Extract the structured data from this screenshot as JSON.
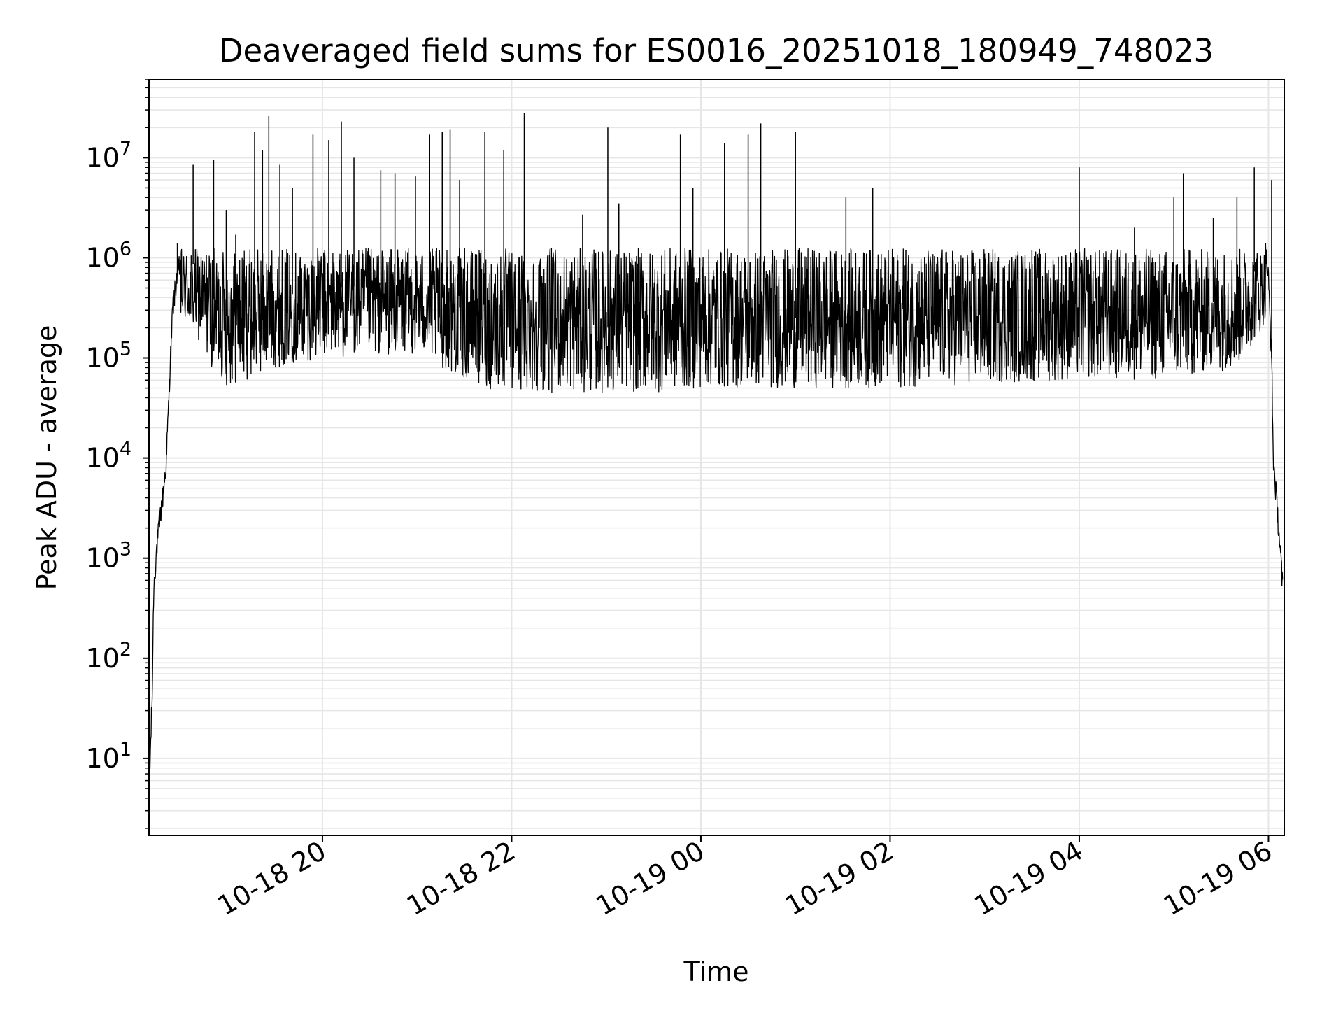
{
  "chart_data": {
    "type": "line",
    "title": "Deaveraged field sums for ES0016_20251018_180949_748023",
    "xlabel": "Time",
    "ylabel": "Peak ADU - average",
    "xaxis": {
      "scale": "time",
      "range": [
        "2025-10-18T18:10:00",
        "2025-10-19T06:10:00"
      ],
      "ticks": [
        "2025-10-18T20:00",
        "2025-10-18T22:00",
        "2025-10-19T00:00",
        "2025-10-19T02:00",
        "2025-10-19T04:00",
        "2025-10-19T06:00"
      ],
      "tick_labels": [
        "10-18 20",
        "10-18 22",
        "10-19 00",
        "10-19 02",
        "10-19 04",
        "10-19 06"
      ],
      "tick_rotation": 30
    },
    "yaxis": {
      "scale": "log",
      "range": [
        1.7,
        60000000
      ],
      "ticks": [
        10,
        100,
        1000,
        10000,
        100000,
        1000000,
        10000000
      ],
      "tick_labels": [
        {
          "base": "10",
          "exp": "1"
        },
        {
          "base": "10",
          "exp": "2"
        },
        {
          "base": "10",
          "exp": "3"
        },
        {
          "base": "10",
          "exp": "4"
        },
        {
          "base": "10",
          "exp": "5"
        },
        {
          "base": "10",
          "exp": "6"
        },
        {
          "base": "10",
          "exp": "7"
        }
      ]
    },
    "grid": {
      "major": true,
      "minor": true,
      "color": "#e6e6e6"
    },
    "series": [
      {
        "color": "#000000",
        "envelope": [
          [
            "2025-10-18T18:10",
            4
          ],
          [
            "2025-10-18T18:12",
            40
          ],
          [
            "2025-10-18T18:13",
            500
          ],
          [
            "2025-10-18T18:15",
            1300
          ],
          [
            "2025-10-18T18:17",
            2500
          ],
          [
            "2025-10-18T18:19",
            4500
          ],
          [
            "2025-10-18T18:21",
            9000
          ],
          [
            "2025-10-18T18:23",
            60000
          ],
          [
            "2025-10-18T18:25",
            300000
          ],
          [
            "2025-10-18T18:28",
            700000
          ],
          [
            "2025-10-18T18:32",
            1100000
          ],
          [
            "2025-10-18T18:40",
            800000
          ],
          [
            "2025-10-18T18:50",
            400000
          ],
          [
            "2025-10-18T19:00",
            250000
          ],
          [
            "2025-10-18T19:30",
            400000
          ],
          [
            "2025-10-18T20:00",
            500000
          ],
          [
            "2025-10-18T21:00",
            550000
          ],
          [
            "2025-10-18T21:30",
            300000
          ],
          [
            "2025-10-18T22:00",
            200000
          ],
          [
            "2025-10-18T23:00",
            200000
          ],
          [
            "2025-10-19T00:00",
            250000
          ],
          [
            "2025-10-19T02:00",
            250000
          ],
          [
            "2025-10-19T04:00",
            300000
          ],
          [
            "2025-10-19T05:00",
            300000
          ],
          [
            "2025-10-19T05:40",
            400000
          ],
          [
            "2025-10-19T05:55",
            900000
          ],
          [
            "2025-10-19T05:58",
            1200000
          ],
          [
            "2025-10-19T06:00",
            600000
          ],
          [
            "2025-10-19T06:02",
            100000
          ],
          [
            "2025-10-19T06:03",
            10000
          ],
          [
            "2025-10-19T06:05",
            4000
          ],
          [
            "2025-10-19T06:07",
            1500
          ],
          [
            "2025-10-19T06:09",
            500
          ]
        ],
        "spikes": [
          [
            "2025-10-18T18:28",
            1400000
          ],
          [
            "2025-10-18T18:38",
            8500000
          ],
          [
            "2025-10-18T18:51",
            9500000
          ],
          [
            "2025-10-18T18:59",
            3000000
          ],
          [
            "2025-10-18T19:05",
            1700000
          ],
          [
            "2025-10-18T19:17",
            18000000
          ],
          [
            "2025-10-18T19:22",
            12000000
          ],
          [
            "2025-10-18T19:26",
            26000000
          ],
          [
            "2025-10-18T19:33",
            8500000
          ],
          [
            "2025-10-18T19:41",
            5000000
          ],
          [
            "2025-10-18T19:54",
            17000000
          ],
          [
            "2025-10-18T20:04",
            15000000
          ],
          [
            "2025-10-18T20:12",
            23000000
          ],
          [
            "2025-10-18T20:20",
            10000000
          ],
          [
            "2025-10-18T20:37",
            7500000
          ],
          [
            "2025-10-18T20:46",
            7000000
          ],
          [
            "2025-10-18T20:59",
            6500000
          ],
          [
            "2025-10-18T21:08",
            17000000
          ],
          [
            "2025-10-18T21:16",
            18000000
          ],
          [
            "2025-10-18T21:21",
            19000000
          ],
          [
            "2025-10-18T21:27",
            6000000
          ],
          [
            "2025-10-18T21:43",
            18000000
          ],
          [
            "2025-10-18T21:55",
            12000000
          ],
          [
            "2025-10-18T22:08",
            28000000
          ],
          [
            "2025-10-18T22:45",
            2700000
          ],
          [
            "2025-10-18T23:01",
            20000000
          ],
          [
            "2025-10-18T23:08",
            3500000
          ],
          [
            "2025-10-18T23:47",
            17000000
          ],
          [
            "2025-10-18T23:55",
            5000000
          ],
          [
            "2025-10-19T00:15",
            14000000
          ],
          [
            "2025-10-19T00:30",
            17000000
          ],
          [
            "2025-10-19T00:38",
            22000000
          ],
          [
            "2025-10-19T01:00",
            18000000
          ],
          [
            "2025-10-19T01:20",
            1000000
          ],
          [
            "2025-10-19T01:32",
            4000000
          ],
          [
            "2025-10-19T01:49",
            5000000
          ],
          [
            "2025-10-19T02:10",
            1200000
          ],
          [
            "2025-10-19T03:00",
            1100000
          ],
          [
            "2025-10-19T03:30",
            1200000
          ],
          [
            "2025-10-19T04:00",
            8000000
          ],
          [
            "2025-10-19T04:35",
            2000000
          ],
          [
            "2025-10-19T05:00",
            4000000
          ],
          [
            "2025-10-19T05:06",
            7000000
          ],
          [
            "2025-10-19T05:25",
            2500000
          ],
          [
            "2025-10-19T05:40",
            4000000
          ],
          [
            "2025-10-19T05:51",
            8000000
          ],
          [
            "2025-10-19T06:02",
            6000000
          ]
        ]
      }
    ]
  }
}
